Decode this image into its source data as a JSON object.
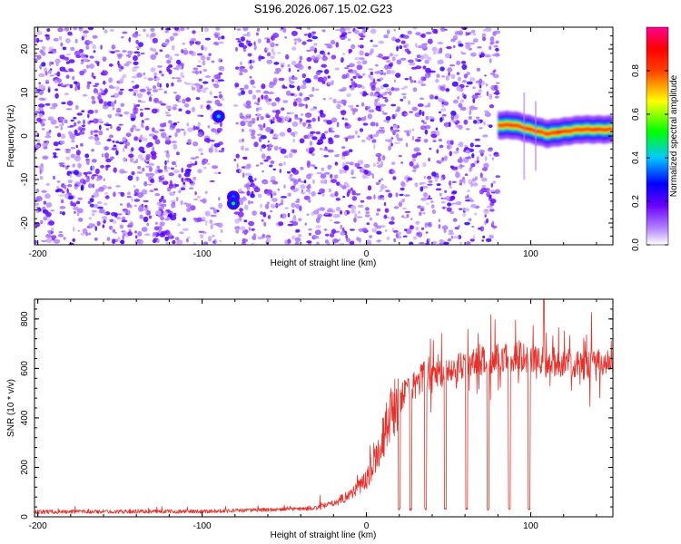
{
  "title": "S196.2026.067.15.02.G23",
  "chart_data": [
    {
      "type": "heatmap",
      "title": "S196.2026.067.15.02.G23",
      "xlabel": "Height of straight line (km)",
      "ylabel": "Frequency (Hz)",
      "xlim": [
        -202,
        150
      ],
      "ylim": [
        -25,
        25
      ],
      "xticks": [
        -200,
        -100,
        0,
        100
      ],
      "xtick_labels": [
        "-200",
        "-100",
        "0",
        "100"
      ],
      "yticks": [
        -20,
        -10,
        0,
        10,
        20
      ],
      "ytick_labels": [
        "-20",
        "-10",
        "0",
        "10",
        "20"
      ],
      "colorbar": {
        "label": "Normalized spectral amplitude",
        "range": [
          0.0,
          1.0
        ],
        "ticks": [
          0.0,
          0.2,
          0.4,
          0.6,
          0.8
        ],
        "tick_labels": [
          "0.0",
          "0.2",
          "0.4",
          "0.6",
          "0.8"
        ],
        "colormap": "rainbow (white-violet-blue-cyan-green-yellow-red-magenta)"
      },
      "noise_region_x": [
        -202,
        80
      ],
      "noise_gap_x": [
        -87,
        -80
      ],
      "hotspots": [
        {
          "x": -90,
          "y": 4.5,
          "amplitude": 0.35
        },
        {
          "x": -81,
          "y": -14,
          "amplitude": 0.3
        },
        {
          "x": -81,
          "y": -15.5,
          "amplitude": 0.45
        }
      ],
      "signal_band": {
        "x": [
          80,
          150
        ],
        "freq": [
          2.5,
          2.5,
          2.0,
          1.5,
          1.0,
          0.5,
          1.0,
          1.5,
          1.5
        ],
        "freq_x": [
          80,
          90,
          95,
          100,
          105,
          110,
          120,
          130,
          150
        ],
        "peak_amplitude": 1.0
      }
    },
    {
      "type": "line",
      "xlabel": "Height of straight line (km)",
      "ylabel": "SNR (10 * v/v)",
      "xlim": [
        -202,
        150
      ],
      "ylim": [
        0,
        880
      ],
      "xticks": [
        -200,
        -100,
        0,
        100
      ],
      "xtick_labels": [
        "-200",
        "-100",
        "0",
        "100"
      ],
      "yticks": [
        0,
        200,
        400,
        600,
        800
      ],
      "ytick_labels": [
        "0",
        "200",
        "400",
        "600",
        "800"
      ],
      "color": "#e8302a",
      "profile_x": [
        -202,
        -100,
        -80,
        -50,
        -30,
        -20,
        -10,
        0,
        5,
        10,
        15,
        20,
        25,
        30,
        35,
        40,
        50,
        60,
        70,
        80,
        90,
        100,
        110,
        120,
        130,
        140,
        150
      ],
      "profile_y": [
        20,
        22,
        25,
        30,
        35,
        55,
        90,
        150,
        230,
        320,
        420,
        470,
        510,
        540,
        570,
        560,
        600,
        610,
        630,
        640,
        640,
        640,
        630,
        620,
        610,
        620,
        630
      ],
      "dropouts_x": [
        20,
        27,
        36,
        48,
        61,
        74,
        87,
        99
      ],
      "dropout_value": 25,
      "peak": {
        "x": 108,
        "y": 880
      }
    }
  ]
}
